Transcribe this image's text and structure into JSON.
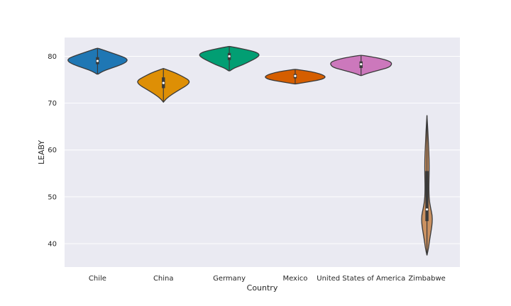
{
  "chart_data": {
    "type": "violin",
    "xlabel": "Country",
    "ylabel": "LEABY",
    "ylim": [
      35,
      84
    ],
    "yticks": [
      40,
      50,
      60,
      70,
      80
    ],
    "grid": true,
    "background": "#eaeaf2",
    "grid_color": "#ffffff",
    "categories": [
      "Chile",
      "China",
      "Germany",
      "Mexico",
      "United States of America",
      "Zimbabwe"
    ],
    "series": [
      {
        "category": "Chile",
        "color": "#1f77b4",
        "min": 76.2,
        "max": 81.7,
        "q1": 78.3,
        "median": 79.0,
        "q3": 79.8,
        "profile": [
          [
            76.2,
            0.02
          ],
          [
            76.8,
            0.17
          ],
          [
            77.5,
            0.45
          ],
          [
            78.3,
            0.8
          ],
          [
            79.0,
            0.96
          ],
          [
            79.6,
            0.92
          ],
          [
            80.2,
            0.68
          ],
          [
            80.8,
            0.42
          ],
          [
            81.3,
            0.2
          ],
          [
            81.7,
            0.02
          ]
        ]
      },
      {
        "category": "China",
        "color": "#de8f05",
        "min": 70.2,
        "max": 77.4,
        "q1": 73.2,
        "median": 74.3,
        "q3": 75.5,
        "profile": [
          [
            70.2,
            0.0
          ],
          [
            71.0,
            0.1
          ],
          [
            72.0,
            0.3
          ],
          [
            73.0,
            0.55
          ],
          [
            74.0,
            0.8
          ],
          [
            74.8,
            0.84
          ],
          [
            75.6,
            0.64
          ],
          [
            76.4,
            0.4
          ],
          [
            77.0,
            0.17
          ],
          [
            77.4,
            0.0
          ]
        ]
      },
      {
        "category": "Germany",
        "color": "#029e73",
        "min": 76.9,
        "max": 82.1,
        "q1": 79.2,
        "median": 80.0,
        "q3": 80.7,
        "profile": [
          [
            76.9,
            0.02
          ],
          [
            77.5,
            0.16
          ],
          [
            78.2,
            0.44
          ],
          [
            79.0,
            0.68
          ],
          [
            79.6,
            0.86
          ],
          [
            80.3,
            0.98
          ],
          [
            80.9,
            0.86
          ],
          [
            81.4,
            0.55
          ],
          [
            81.8,
            0.26
          ],
          [
            82.1,
            0.02
          ]
        ]
      },
      {
        "category": "Mexico",
        "color": "#d55e00",
        "min": 74.1,
        "max": 77.2,
        "q1": 75.3,
        "median": 75.8,
        "q3": 76.2,
        "profile": [
          [
            74.1,
            0.02
          ],
          [
            74.5,
            0.4
          ],
          [
            75.0,
            0.82
          ],
          [
            75.5,
            0.98
          ],
          [
            76.0,
            0.9
          ],
          [
            76.5,
            0.66
          ],
          [
            76.9,
            0.36
          ],
          [
            77.2,
            0.02
          ]
        ]
      },
      {
        "category": "United States of America",
        "color": "#cc78bc",
        "min": 75.9,
        "max": 80.2,
        "q1": 77.5,
        "median": 78.3,
        "q3": 78.9,
        "profile": [
          [
            75.9,
            0.02
          ],
          [
            76.4,
            0.22
          ],
          [
            77.0,
            0.56
          ],
          [
            77.6,
            0.88
          ],
          [
            78.2,
            0.98
          ],
          [
            78.8,
            0.96
          ],
          [
            79.4,
            0.7
          ],
          [
            79.9,
            0.34
          ],
          [
            80.2,
            0.02
          ]
        ]
      },
      {
        "category": "Zimbabwe",
        "color": "#ca9161",
        "min": 37.5,
        "max": 67.4,
        "q1": 44.8,
        "median": 47.3,
        "q3": 55.5,
        "profile": [
          [
            37.5,
            0.0
          ],
          [
            39.0,
            0.05
          ],
          [
            41.0,
            0.09
          ],
          [
            43.0,
            0.14
          ],
          [
            44.5,
            0.17
          ],
          [
            46.0,
            0.17
          ],
          [
            47.5,
            0.12
          ],
          [
            49.5,
            0.07
          ],
          [
            52.0,
            0.06
          ],
          [
            55.0,
            0.07
          ],
          [
            58.0,
            0.07
          ],
          [
            61.0,
            0.05
          ],
          [
            64.0,
            0.03
          ],
          [
            67.4,
            0.0
          ]
        ]
      }
    ]
  }
}
